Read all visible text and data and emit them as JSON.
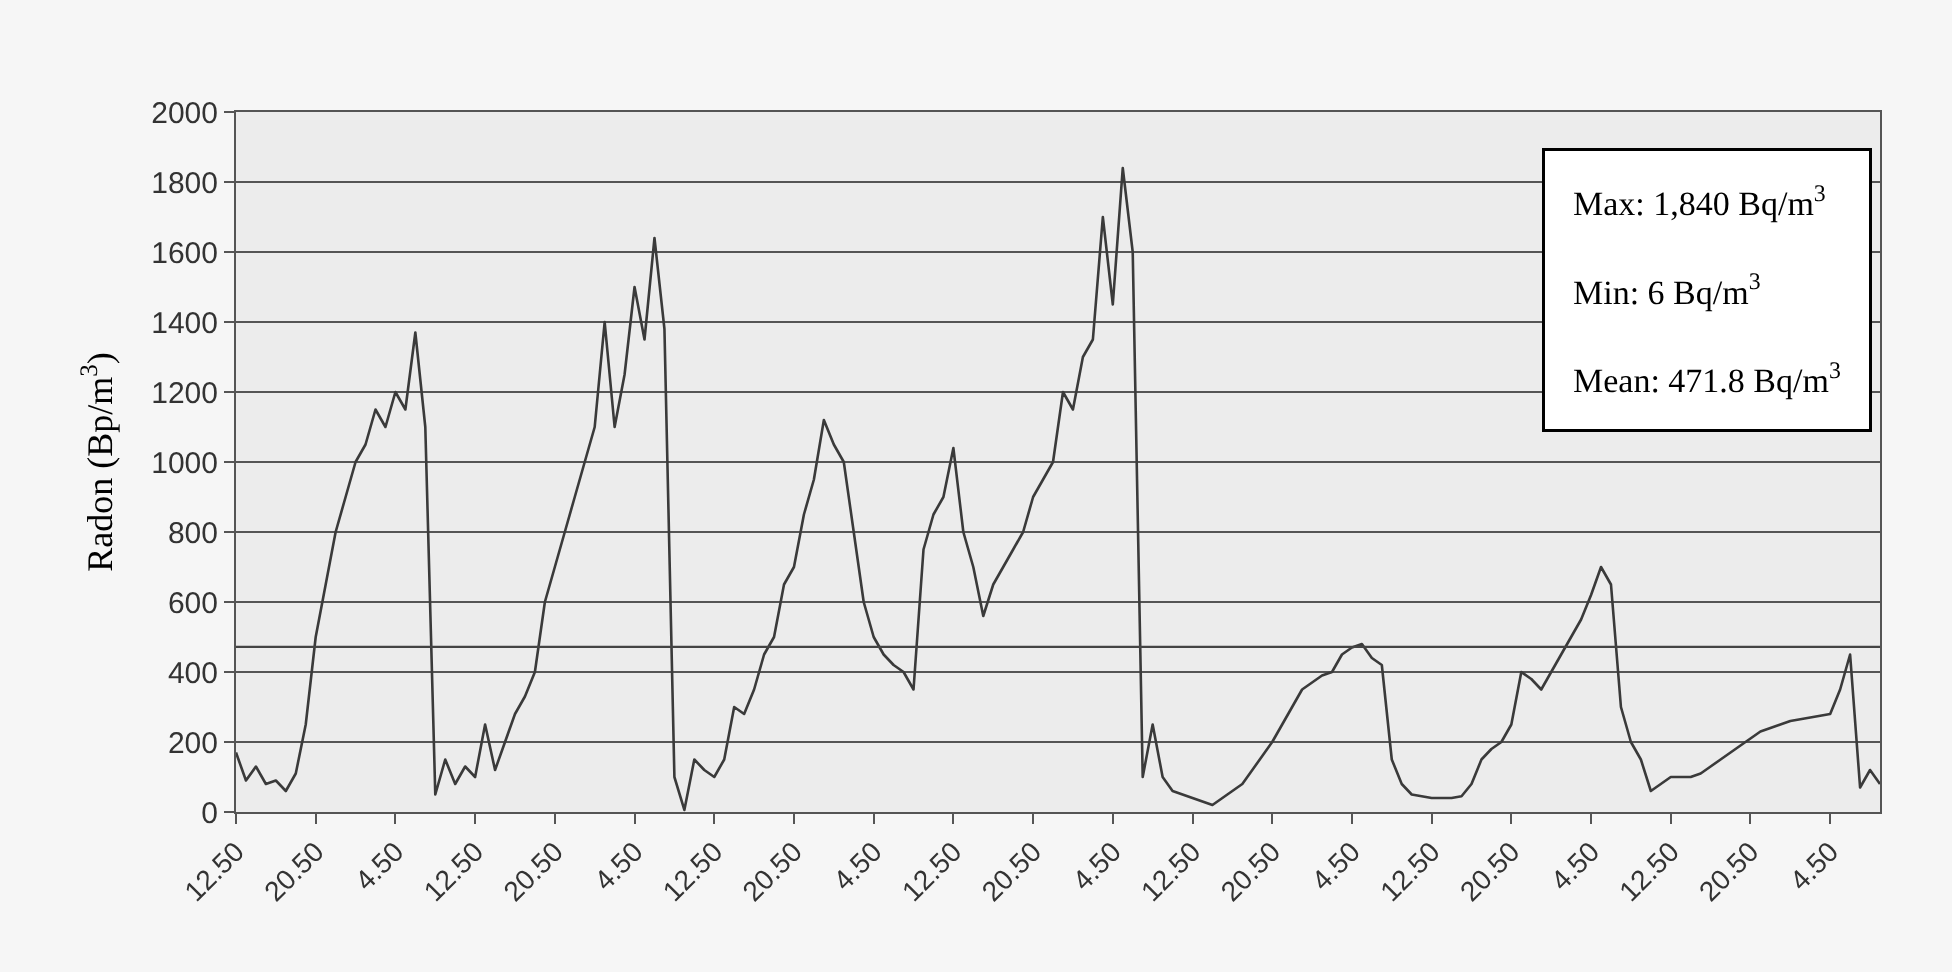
{
  "chart_data": {
    "type": "line",
    "ylabel": "Radon (Bp/m$^{3}$)",
    "annotations": [
      "Max: 1,840 Bq/m$^{3}$",
      "Min: 6 Bq/m$^{3}$",
      "Mean: 471.8 Bq/m$^{3}$"
    ],
    "categories": [
      "12.50",
      null,
      null,
      null,
      null,
      null,
      null,
      null,
      "20.50",
      null,
      null,
      null,
      null,
      null,
      null,
      null,
      "4.50",
      null,
      null,
      null,
      null,
      null,
      null,
      null,
      "12.50",
      null,
      null,
      null,
      null,
      null,
      null,
      null,
      "20.50",
      null,
      null,
      null,
      null,
      null,
      null,
      null,
      "4.50",
      null,
      null,
      null,
      null,
      null,
      null,
      null,
      "12.50",
      null,
      null,
      null,
      null,
      null,
      null,
      null,
      "20.50",
      null,
      null,
      null,
      null,
      null,
      null,
      null,
      "4.50",
      null,
      null,
      null,
      null,
      null,
      null,
      null,
      "12.50",
      null,
      null,
      null,
      null,
      null,
      null,
      null,
      "20.50",
      null,
      null,
      null,
      null,
      null,
      null,
      null,
      "4.50",
      null,
      null,
      null,
      null,
      null,
      null,
      null,
      "12.50",
      null,
      null,
      null,
      null,
      null,
      null,
      null,
      "20.50",
      null,
      null,
      null,
      null,
      null,
      null,
      null,
      "4.50",
      null,
      null,
      null,
      null,
      null,
      null,
      null,
      "12.50",
      null,
      null,
      null,
      null,
      null,
      null,
      null,
      "20.50",
      null,
      null,
      null,
      null,
      null,
      null,
      null,
      "4.50",
      null,
      null,
      null,
      null,
      null,
      null,
      null,
      "12.50",
      null,
      null,
      null,
      null,
      null,
      null,
      null,
      "20.50",
      null,
      null,
      null,
      null,
      null,
      null,
      null,
      "4.50",
      null,
      null,
      null,
      null,
      null
    ],
    "series": [
      {
        "color": "#3a3a3a",
        "values": [
          170,
          90,
          130,
          80,
          90,
          60,
          110,
          250,
          500,
          650,
          800,
          900,
          1000,
          1050,
          1150,
          1100,
          1200,
          1150,
          1370,
          1100,
          50,
          150,
          80,
          130,
          100,
          250,
          120,
          200,
          280,
          330,
          400,
          600,
          700,
          800,
          900,
          1000,
          1100,
          1400,
          1100,
          1250,
          1500,
          1350,
          1640,
          1380,
          100,
          6,
          150,
          120,
          100,
          150,
          300,
          280,
          350,
          450,
          500,
          650,
          700,
          850,
          950,
          1120,
          1050,
          1000,
          800,
          600,
          500,
          450,
          420,
          400,
          350,
          750,
          850,
          900,
          1040,
          800,
          700,
          560,
          650,
          700,
          750,
          800,
          900,
          950,
          1000,
          1200,
          1150,
          1300,
          1350,
          1700,
          1450,
          1840,
          1600,
          100,
          250,
          100,
          60,
          50,
          40,
          30,
          20,
          40,
          60,
          80,
          120,
          160,
          200,
          250,
          300,
          350,
          370,
          390,
          400,
          450,
          470,
          480,
          440,
          420,
          150,
          80,
          50,
          45,
          40,
          40,
          40,
          45,
          80,
          150,
          180,
          200,
          250,
          400,
          380,
          350,
          400,
          450,
          500,
          550,
          620,
          700,
          650,
          300,
          200,
          150,
          60,
          80,
          100,
          100,
          100,
          110,
          130,
          150,
          170,
          190,
          210,
          230,
          240,
          250,
          260,
          265,
          270,
          275,
          280,
          350,
          450,
          70,
          120,
          80
        ]
      }
    ],
    "ylim": [
      0,
      2000
    ],
    "yticks": [
      0,
      200,
      400,
      600,
      800,
      1000,
      1200,
      1400,
      1600,
      1800,
      2000
    ],
    "ref_lines": [
      {
        "axis": "y",
        "value": 471.8,
        "color": "#444444"
      }
    ],
    "grid": "y",
    "legend": false,
    "marker": "none",
    "line_style": "solid"
  }
}
